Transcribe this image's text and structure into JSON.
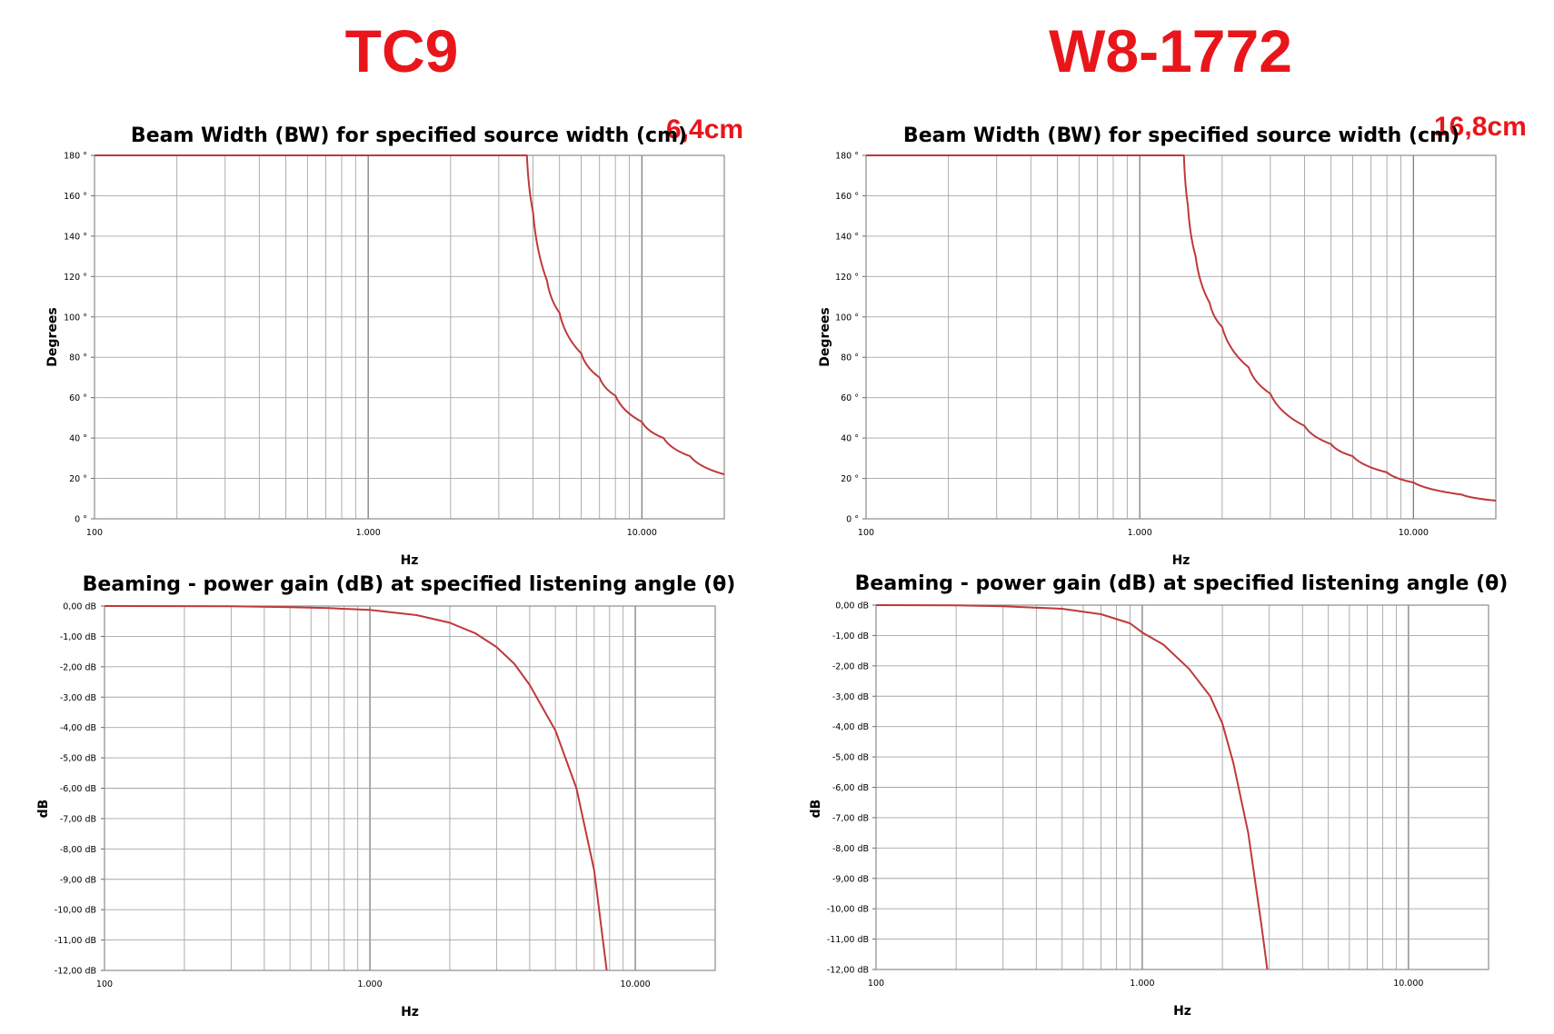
{
  "models": [
    {
      "name": "TC9",
      "source_width": "6,4cm"
    },
    {
      "name": "W8-1772",
      "source_width": "16,8cm"
    }
  ],
  "colors": {
    "model_text": "#e8161b",
    "curve": "#c0393b",
    "grid": "#a6a6a6",
    "frame": "#8c8c8c"
  },
  "chart_data": [
    {
      "type": "line",
      "title": "Beam Width (BW) for specified source width (cm)",
      "xlabel": "Hz",
      "ylabel": "Degrees",
      "x_scale": "log",
      "xlim": [
        100,
        20000
      ],
      "ylim": [
        0,
        180
      ],
      "x_tick_labels": [
        "100",
        "1.000",
        "10.000"
      ],
      "y_tick_labels": [
        "0 °",
        "20 °",
        "40 °",
        "60 °",
        "80 °",
        "100 °",
        "120 °",
        "140 °",
        "160 °",
        "180 °"
      ],
      "grid": true,
      "series": [
        {
          "x": [
            100,
            3000,
            3800,
            4000,
            4500,
            5000,
            6000,
            7000,
            8000,
            10000,
            12000,
            15000,
            20000
          ],
          "y": [
            180,
            180,
            180,
            152,
            118,
            102,
            82,
            70,
            61,
            48,
            40,
            31,
            22
          ]
        }
      ]
    },
    {
      "type": "line",
      "title": "Beaming - power gain (dB) at specified listening angle (θ)",
      "xlabel": "Hz",
      "ylabel": "dB",
      "x_scale": "log",
      "xlim": [
        100,
        20000
      ],
      "ylim": [
        -12,
        0
      ],
      "x_tick_labels": [
        "100",
        "1.000",
        "10.000"
      ],
      "y_tick_labels": [
        "0,00 dB",
        "-1,00 dB",
        "-2,00 dB",
        "-3,00 dB",
        "-4,00 dB",
        "-5,00 dB",
        "-6,00 dB",
        "-7,00 dB",
        "-8,00 dB",
        "-9,00 dB",
        "-10,00 dB",
        "-11,00 dB",
        "-12,00 dB"
      ],
      "grid": true,
      "series": [
        {
          "x": [
            100,
            300,
            500,
            700,
            1000,
            1500,
            2000,
            2500,
            3000,
            3500,
            4000,
            5000,
            6000,
            7000,
            7800
          ],
          "y": [
            0,
            -0.01,
            -0.04,
            -0.07,
            -0.13,
            -0.3,
            -0.55,
            -0.9,
            -1.35,
            -1.9,
            -2.6,
            -4.1,
            -6.0,
            -8.7,
            -12
          ]
        }
      ]
    },
    {
      "type": "line",
      "title": "Beam Width (BW) for specified source width (cm)",
      "xlabel": "Hz",
      "ylabel": "Degrees",
      "x_scale": "log",
      "xlim": [
        100,
        20000
      ],
      "ylim": [
        0,
        180
      ],
      "x_tick_labels": [
        "100",
        "1.000",
        "10.000"
      ],
      "y_tick_labels": [
        "0 °",
        "20 °",
        "40 °",
        "60 °",
        "80 °",
        "100 °",
        "120 °",
        "140 °",
        "160 °",
        "180 °"
      ],
      "grid": true,
      "series": [
        {
          "x": [
            100,
            1000,
            1450,
            1500,
            1600,
            1800,
            2000,
            2500,
            3000,
            4000,
            5000,
            6000,
            8000,
            10000,
            15000,
            20000
          ],
          "y": [
            180,
            180,
            180,
            155,
            130,
            107,
            95,
            75,
            62,
            46,
            37,
            31,
            23,
            18,
            12,
            9
          ]
        }
      ]
    },
    {
      "type": "line",
      "title": "Beaming - power gain (dB) at specified listening angle (θ)",
      "xlabel": "Hz",
      "ylabel": "dB",
      "x_scale": "log",
      "xlim": [
        100,
        20000
      ],
      "ylim": [
        -12,
        0
      ],
      "x_tick_labels": [
        "100",
        "1.000",
        "10.000"
      ],
      "y_tick_labels": [
        "0,00 dB",
        "-1,00 dB",
        "-2,00 dB",
        "-3,00 dB",
        "-4,00 dB",
        "-5,00 dB",
        "-6,00 dB",
        "-7,00 dB",
        "-8,00 dB",
        "-9,00 dB",
        "-10,00 dB",
        "-11,00 dB",
        "-12,00 dB"
      ],
      "grid": true,
      "series": [
        {
          "x": [
            100,
            200,
            300,
            500,
            700,
            900,
            1000,
            1200,
            1500,
            1800,
            2000,
            2200,
            2500,
            2800,
            2950
          ],
          "y": [
            0,
            -0.01,
            -0.04,
            -0.12,
            -0.3,
            -0.6,
            -0.9,
            -1.3,
            -2.1,
            -3.0,
            -3.9,
            -5.2,
            -7.5,
            -10.5,
            -12
          ]
        }
      ]
    }
  ]
}
